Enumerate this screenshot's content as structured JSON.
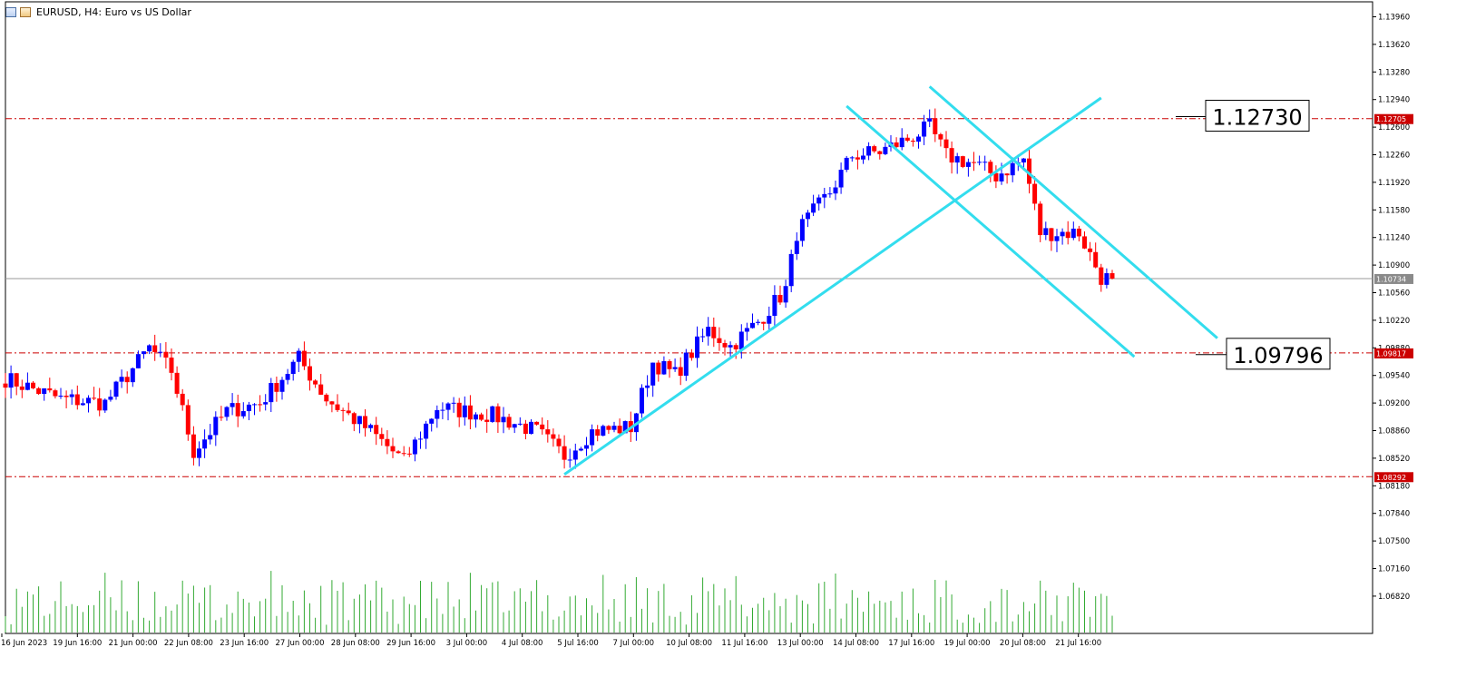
{
  "header": {
    "title": "EURUSD, H4:  Euro vs US Dollar",
    "icon_left": "chart-window-icon",
    "icon_right": "symbol-icon"
  },
  "colors": {
    "bull": "#0000ff",
    "bear": "#ff0000",
    "level_line": "#cc0000",
    "trendline": "#33ddee",
    "current_price_line": "#9a9a9a",
    "volume": "#33aa33"
  },
  "chart_data": {
    "type": "candlestick",
    "symbol": "EURUSD",
    "timeframe": "H4",
    "y_range": [
      1.0606,
      1.1424
    ],
    "y_ticks": [
      "1.13960",
      "1.13620",
      "1.13280",
      "1.12940",
      "1.12600",
      "1.12260",
      "1.11920",
      "1.11580",
      "1.11240",
      "1.10900",
      "1.10560",
      "1.10220",
      "1.09880",
      "1.09540",
      "1.09200",
      "1.08860",
      "1.08520",
      "1.08180",
      "1.07840",
      "1.07500",
      "1.07160",
      "1.06820"
    ],
    "x_labels": [
      "16 Jun 2023",
      "19 Jun 16:00",
      "21 Jun 00:00",
      "22 Jun 08:00",
      "23 Jun 16:00",
      "27 Jun 00:00",
      "28 Jun 08:00",
      "29 Jun 16:00",
      "3 Jul 00:00",
      "4 Jul 08:00",
      "5 Jul 16:00",
      "7 Jul 00:00",
      "10 Jul 08:00",
      "11 Jul 16:00",
      "13 Jul 00:00",
      "14 Jul 08:00",
      "17 Jul 16:00",
      "19 Jul 00:00",
      "20 Jul 08:00",
      "21 Jul 16:00"
    ],
    "anchors": [
      {
        "t": 0,
        "p": 1.095
      },
      {
        "t": 10,
        "p": 1.0925
      },
      {
        "t": 18,
        "p": 1.092
      },
      {
        "t": 26,
        "p": 1.0988
      },
      {
        "t": 30,
        "p": 1.096
      },
      {
        "t": 34,
        "p": 1.086
      },
      {
        "t": 40,
        "p": 1.091
      },
      {
        "t": 46,
        "p": 1.092
      },
      {
        "t": 53,
        "p": 1.0975
      },
      {
        "t": 58,
        "p": 1.0925
      },
      {
        "t": 66,
        "p": 1.0885
      },
      {
        "t": 72,
        "p": 1.0848
      },
      {
        "t": 78,
        "p": 1.0915
      },
      {
        "t": 88,
        "p": 1.0905
      },
      {
        "t": 96,
        "p": 1.0885
      },
      {
        "t": 101,
        "p": 1.0855
      },
      {
        "t": 106,
        "p": 1.0885
      },
      {
        "t": 113,
        "p": 1.089
      },
      {
        "t": 117,
        "p": 1.097
      },
      {
        "t": 121,
        "p": 1.0955
      },
      {
        "t": 127,
        "p": 1.101
      },
      {
        "t": 131,
        "p": 1.099
      },
      {
        "t": 136,
        "p": 1.102
      },
      {
        "t": 141,
        "p": 1.106
      },
      {
        "t": 143,
        "p": 1.113
      },
      {
        "t": 149,
        "p": 1.118
      },
      {
        "t": 153,
        "p": 1.1225
      },
      {
        "t": 158,
        "p": 1.123
      },
      {
        "t": 163,
        "p": 1.1245
      },
      {
        "t": 167,
        "p": 1.126
      },
      {
        "t": 170,
        "p": 1.1225
      },
      {
        "t": 175,
        "p": 1.1215
      },
      {
        "t": 179,
        "p": 1.12
      },
      {
        "t": 184,
        "p": 1.122
      },
      {
        "t": 187,
        "p": 1.113
      },
      {
        "t": 194,
        "p": 1.113
      },
      {
        "t": 198,
        "p": 1.1075
      },
      {
        "t": 200,
        "p": 1.1073
      }
    ],
    "levels": [
      {
        "price": 1.12705,
        "label": "1.12705"
      },
      {
        "price": 1.09817,
        "label": "1.09817"
      },
      {
        "price": 1.08292,
        "label": "1.08292"
      }
    ],
    "current_price": {
      "price": 1.10734,
      "label": "1.10734"
    },
    "annotations": [
      {
        "text": "1.12730",
        "price": 1.1273
      },
      {
        "text": "1.09796",
        "price": 1.09796
      }
    ],
    "trendlines": [
      {
        "from": [
          101,
          1.0832
        ],
        "to": [
          198,
          1.1296
        ]
      },
      {
        "from": [
          152,
          1.1286
        ],
        "to": [
          204,
          1.0977
        ]
      },
      {
        "from": [
          167,
          1.131
        ],
        "to": [
          219,
          1.1
        ]
      }
    ],
    "grid": false,
    "volume_subplot": true
  }
}
